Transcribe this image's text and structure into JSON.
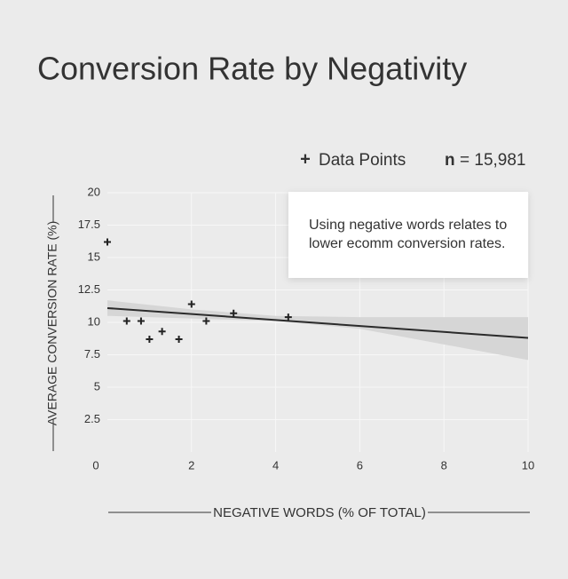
{
  "chart_data": {
    "type": "scatter",
    "title": "Conversion Rate by Negativity",
    "x_label": "NEGATIVE WORDS (% OF TOTAL)",
    "y_label": "AVERAGE CONVERSION RATE (%)",
    "xlim": [
      0,
      10
    ],
    "ylim": [
      0,
      20
    ],
    "xticks": [
      0,
      2,
      4,
      6,
      8,
      10
    ],
    "yticks": [
      2.5,
      5,
      7.5,
      10,
      12.5,
      15,
      17.5,
      20
    ],
    "grid": true,
    "series": [
      {
        "name": "Data Points",
        "color": "#222222",
        "marker": "+",
        "x": [
          0.0,
          0.46,
          0.8,
          1.0,
          1.3,
          1.7,
          2.0,
          2.35,
          3.0,
          4.3
        ],
        "values": [
          16.2,
          10.1,
          10.1,
          8.7,
          9.3,
          8.7,
          11.4,
          10.1,
          10.7,
          10.4
        ]
      }
    ],
    "fit": {
      "color": "#2b2b2b",
      "x": [
        0,
        10
      ],
      "values": [
        11.1,
        8.8
      ]
    },
    "band": {
      "color": "#d6d6d6",
      "x": [
        0,
        2,
        4,
        6,
        8,
        10
      ],
      "upper": [
        11.7,
        11.0,
        10.5,
        10.4,
        10.4,
        10.4
      ],
      "lower": [
        10.5,
        10.3,
        10.1,
        9.5,
        8.3,
        7.1
      ]
    },
    "sample_size": {
      "label": "n",
      "text": "= 15,981"
    },
    "annotation": [
      "Using negative words relates to",
      "lower ecomm conversion rates."
    ]
  }
}
